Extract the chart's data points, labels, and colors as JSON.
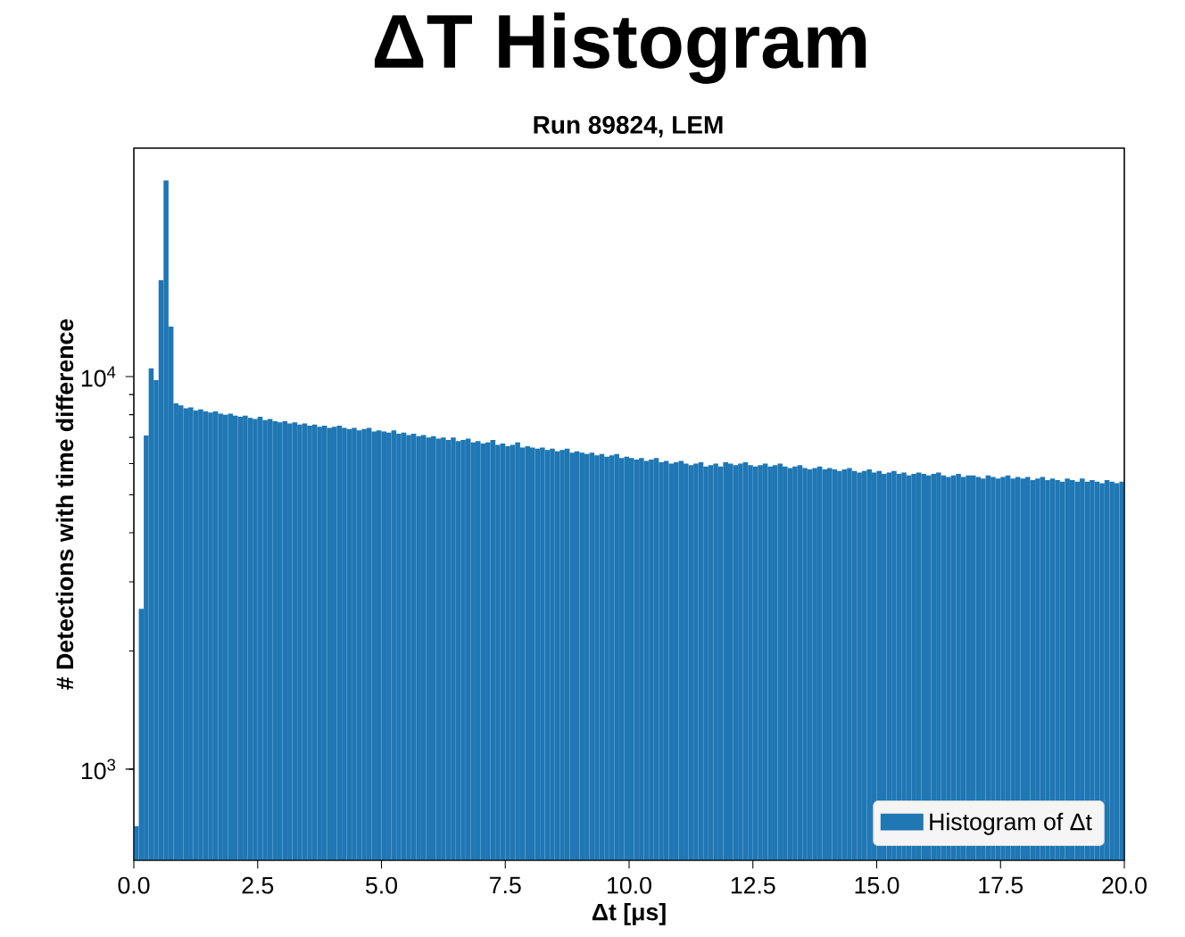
{
  "chart_data": {
    "type": "histogram",
    "title": "ΔT Histogram",
    "subtitle": "Run 89824, LEM",
    "xlabel": "Δt [μs]",
    "ylabel": "# Detections with time difference",
    "bins": [
      0.0,
      0.1,
      0.2,
      0.3,
      0.4,
      0.5,
      0.6,
      0.7,
      0.8,
      0.9,
      1.0,
      1.1,
      1.2,
      1.3,
      1.4,
      1.5,
      1.6,
      1.7,
      1.8,
      1.9,
      2.0,
      2.1,
      2.2,
      2.3,
      2.4,
      2.5,
      2.6,
      2.7,
      2.8,
      2.9,
      3.0,
      3.1,
      3.2,
      3.3,
      3.4,
      3.5,
      3.6,
      3.7,
      3.8,
      3.9,
      4.0,
      4.1,
      4.2,
      4.3,
      4.4,
      4.5,
      4.6,
      4.7,
      4.8,
      4.9,
      5.0,
      5.1,
      5.2,
      5.3,
      5.4,
      5.5,
      5.6,
      5.7,
      5.8,
      5.9,
      6.0,
      6.1,
      6.2,
      6.3,
      6.4,
      6.5,
      6.6,
      6.7,
      6.8,
      6.9,
      7.0,
      7.1,
      7.2,
      7.3,
      7.4,
      7.5,
      7.6,
      7.7,
      7.8,
      7.9,
      8.0,
      8.1,
      8.2,
      8.3,
      8.4,
      8.5,
      8.6,
      8.7,
      8.8,
      8.9,
      9.0,
      9.1,
      9.2,
      9.3,
      9.4,
      9.5,
      9.6,
      9.7,
      9.8,
      9.9,
      10.0,
      10.1,
      10.2,
      10.3,
      10.4,
      10.5,
      10.6,
      10.7,
      10.8,
      10.9,
      11.0,
      11.1,
      11.2,
      11.3,
      11.4,
      11.5,
      11.6,
      11.7,
      11.8,
      11.9,
      12.0,
      12.1,
      12.2,
      12.3,
      12.4,
      12.5,
      12.6,
      12.7,
      12.8,
      12.9,
      13.0,
      13.1,
      13.2,
      13.3,
      13.4,
      13.5,
      13.6,
      13.7,
      13.8,
      13.9,
      14.0,
      14.1,
      14.2,
      14.3,
      14.4,
      14.5,
      14.6,
      14.7,
      14.8,
      14.9,
      15.0,
      15.1,
      15.2,
      15.3,
      15.4,
      15.5,
      15.6,
      15.7,
      15.8,
      15.9,
      16.0,
      16.1,
      16.2,
      16.3,
      16.4,
      16.5,
      16.6,
      16.7,
      16.8,
      16.9,
      17.0,
      17.1,
      17.2,
      17.3,
      17.4,
      17.5,
      17.6,
      17.7,
      17.8,
      17.9,
      18.0,
      18.1,
      18.2,
      18.3,
      18.4,
      18.5,
      18.6,
      18.7,
      18.8,
      18.9,
      19.0,
      19.1,
      19.2,
      19.3,
      19.4,
      19.5,
      19.6,
      19.7,
      19.8,
      19.9,
      20.0
    ],
    "series": [
      {
        "name": "Histogram of Δt",
        "color": "#1f77b4",
        "values": [
          716,
          2560,
          7080,
          10500,
          9790,
          17600,
          31600,
          13400,
          8550,
          8450,
          8300,
          8350,
          8200,
          8250,
          8150,
          8100,
          8150,
          8050,
          8000,
          8050,
          7950,
          7900,
          7950,
          7850,
          7800,
          7900,
          7750,
          7800,
          7700,
          7650,
          7700,
          7600,
          7650,
          7550,
          7600,
          7500,
          7550,
          7450,
          7500,
          7400,
          7450,
          7500,
          7400,
          7350,
          7400,
          7300,
          7350,
          7400,
          7250,
          7300,
          7250,
          7200,
          7300,
          7150,
          7200,
          7100,
          7150,
          7050,
          7100,
          7000,
          7050,
          6950,
          7000,
          6900,
          7000,
          6850,
          6900,
          6950,
          6800,
          6850,
          6750,
          6800,
          6900,
          6700,
          6750,
          6650,
          6700,
          6800,
          6600,
          6650,
          6600,
          6550,
          6600,
          6500,
          6550,
          6450,
          6500,
          6550,
          6400,
          6450,
          6400,
          6350,
          6400,
          6300,
          6350,
          6250,
          6300,
          6350,
          6200,
          6250,
          6200,
          6150,
          6200,
          6100,
          6150,
          6200,
          6050,
          6100,
          6000,
          6050,
          6100,
          6000,
          5950,
          6000,
          6050,
          5900,
          5950,
          6000,
          5900,
          6050,
          6000,
          5950,
          6000,
          6050,
          5950,
          5900,
          5950,
          6000,
          5900,
          5950,
          6000,
          5900,
          5850,
          5900,
          5950,
          5850,
          5800,
          5850,
          5900,
          5800,
          5850,
          5800,
          5750,
          5800,
          5850,
          5750,
          5700,
          5750,
          5800,
          5700,
          5750,
          5650,
          5700,
          5750,
          5650,
          5700,
          5600,
          5650,
          5700,
          5650,
          5600,
          5650,
          5700,
          5600,
          5550,
          5600,
          5650,
          5550,
          5600,
          5600,
          5550,
          5500,
          5600,
          5550,
          5500,
          5550,
          5600,
          5500,
          5550,
          5500,
          5550,
          5450,
          5500,
          5550,
          5450,
          5500,
          5450,
          5400,
          5500,
          5450,
          5400,
          5500,
          5400,
          5450,
          5400,
          5350,
          5450,
          5400,
          5350,
          5400
        ]
      }
    ],
    "xlim": [
      0,
      20
    ],
    "ylim": [
      586,
      38200
    ],
    "xticks": [
      {
        "value": 0,
        "label": "0.0"
      },
      {
        "value": 2.5,
        "label": "2.5"
      },
      {
        "value": 5,
        "label": "5.0"
      },
      {
        "value": 7.5,
        "label": "7.5"
      },
      {
        "value": 10,
        "label": "10.0"
      },
      {
        "value": 12.5,
        "label": "12.5"
      },
      {
        "value": 15,
        "label": "15.0"
      },
      {
        "value": 17.5,
        "label": "17.5"
      },
      {
        "value": 20,
        "label": "20.0"
      }
    ],
    "yticks": [
      {
        "value": 1000,
        "label": "10$^{3}$"
      },
      {
        "value": 10000,
        "label": "10$^{4}$"
      }
    ],
    "log": "y",
    "legend": "bottom right"
  }
}
